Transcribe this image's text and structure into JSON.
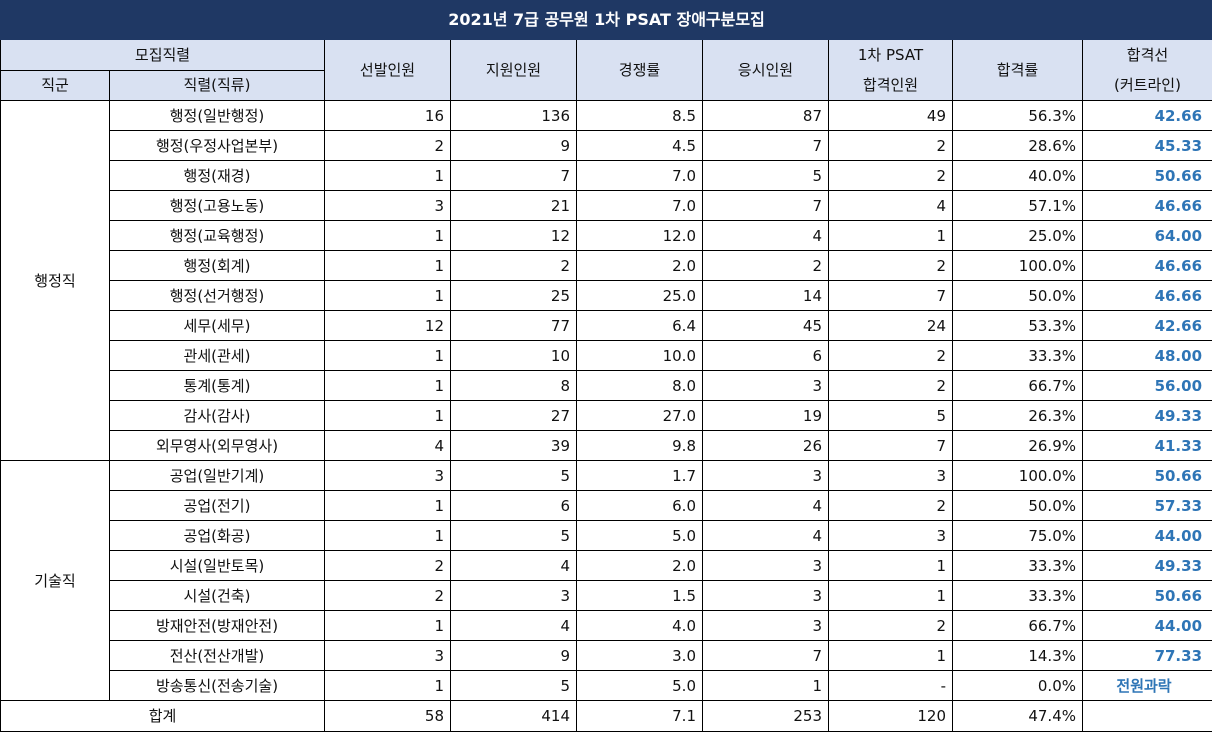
{
  "title": "2021년 7급 공무원 1차 PSAT 장애구분모집",
  "headers": {
    "recruit_group": "모집직렬",
    "category": "직군",
    "series": "직렬(직류)",
    "selected": "선발인원",
    "applicants": "지원인원",
    "competition": "경쟁률",
    "takers": "응시인원",
    "pass_line1": "1차 PSAT",
    "pass_line2": "합격인원",
    "rate": "합격률",
    "cutoff_line1": "합격선",
    "cutoff_line2": "(커트라인)"
  },
  "groups": [
    {
      "name": "행정직",
      "rows": [
        {
          "series": "행정(일반행정)",
          "selected": "16",
          "applicants": "136",
          "competition": "8.5",
          "takers": "87",
          "passed": "49",
          "rate": "56.3%",
          "cutoff": "42.66"
        },
        {
          "series": "행정(우정사업본부)",
          "selected": "2",
          "applicants": "9",
          "competition": "4.5",
          "takers": "7",
          "passed": "2",
          "rate": "28.6%",
          "cutoff": "45.33"
        },
        {
          "series": "행정(재경)",
          "selected": "1",
          "applicants": "7",
          "competition": "7.0",
          "takers": "5",
          "passed": "2",
          "rate": "40.0%",
          "cutoff": "50.66"
        },
        {
          "series": "행정(고용노동)",
          "selected": "3",
          "applicants": "21",
          "competition": "7.0",
          "takers": "7",
          "passed": "4",
          "rate": "57.1%",
          "cutoff": "46.66"
        },
        {
          "series": "행정(교육행정)",
          "selected": "1",
          "applicants": "12",
          "competition": "12.0",
          "takers": "4",
          "passed": "1",
          "rate": "25.0%",
          "cutoff": "64.00"
        },
        {
          "series": "행정(회계)",
          "selected": "1",
          "applicants": "2",
          "competition": "2.0",
          "takers": "2",
          "passed": "2",
          "rate": "100.0%",
          "cutoff": "46.66"
        },
        {
          "series": "행정(선거행정)",
          "selected": "1",
          "applicants": "25",
          "competition": "25.0",
          "takers": "14",
          "passed": "7",
          "rate": "50.0%",
          "cutoff": "46.66"
        },
        {
          "series": "세무(세무)",
          "selected": "12",
          "applicants": "77",
          "competition": "6.4",
          "takers": "45",
          "passed": "24",
          "rate": "53.3%",
          "cutoff": "42.66"
        },
        {
          "series": "관세(관세)",
          "selected": "1",
          "applicants": "10",
          "competition": "10.0",
          "takers": "6",
          "passed": "2",
          "rate": "33.3%",
          "cutoff": "48.00"
        },
        {
          "series": "통계(통계)",
          "selected": "1",
          "applicants": "8",
          "competition": "8.0",
          "takers": "3",
          "passed": "2",
          "rate": "66.7%",
          "cutoff": "56.00"
        },
        {
          "series": "감사(감사)",
          "selected": "1",
          "applicants": "27",
          "competition": "27.0",
          "takers": "19",
          "passed": "5",
          "rate": "26.3%",
          "cutoff": "49.33"
        },
        {
          "series": "외무영사(외무영사)",
          "selected": "4",
          "applicants": "39",
          "competition": "9.8",
          "takers": "26",
          "passed": "7",
          "rate": "26.9%",
          "cutoff": "41.33"
        }
      ]
    },
    {
      "name": "기술직",
      "rows": [
        {
          "series": "공업(일반기계)",
          "selected": "3",
          "applicants": "5",
          "competition": "1.7",
          "takers": "3",
          "passed": "3",
          "rate": "100.0%",
          "cutoff": "50.66"
        },
        {
          "series": "공업(전기)",
          "selected": "1",
          "applicants": "6",
          "competition": "6.0",
          "takers": "4",
          "passed": "2",
          "rate": "50.0%",
          "cutoff": "57.33"
        },
        {
          "series": "공업(화공)",
          "selected": "1",
          "applicants": "5",
          "competition": "5.0",
          "takers": "4",
          "passed": "3",
          "rate": "75.0%",
          "cutoff": "44.00"
        },
        {
          "series": "시설(일반토목)",
          "selected": "2",
          "applicants": "4",
          "competition": "2.0",
          "takers": "3",
          "passed": "1",
          "rate": "33.3%",
          "cutoff": "49.33"
        },
        {
          "series": "시설(건축)",
          "selected": "2",
          "applicants": "3",
          "competition": "1.5",
          "takers": "3",
          "passed": "1",
          "rate": "33.3%",
          "cutoff": "50.66"
        },
        {
          "series": "방재안전(방재안전)",
          "selected": "1",
          "applicants": "4",
          "competition": "4.0",
          "takers": "3",
          "passed": "2",
          "rate": "66.7%",
          "cutoff": "44.00"
        },
        {
          "series": "전산(전산개발)",
          "selected": "3",
          "applicants": "9",
          "competition": "3.0",
          "takers": "7",
          "passed": "1",
          "rate": "14.3%",
          "cutoff": "77.33"
        },
        {
          "series": "방송통신(전송기술)",
          "selected": "1",
          "applicants": "5",
          "competition": "5.0",
          "takers": "1",
          "passed": "-",
          "rate": "0.0%",
          "cutoff": "전원과락"
        }
      ]
    }
  ],
  "total": {
    "label": "합계",
    "selected": "58",
    "applicants": "414",
    "competition": "7.1",
    "takers": "253",
    "passed": "120",
    "rate": "47.4%",
    "cutoff": ""
  },
  "colors": {
    "title_bg": "#1f3864",
    "header_bg": "#d9e1f2",
    "cutoff_text": "#2e75b6"
  }
}
